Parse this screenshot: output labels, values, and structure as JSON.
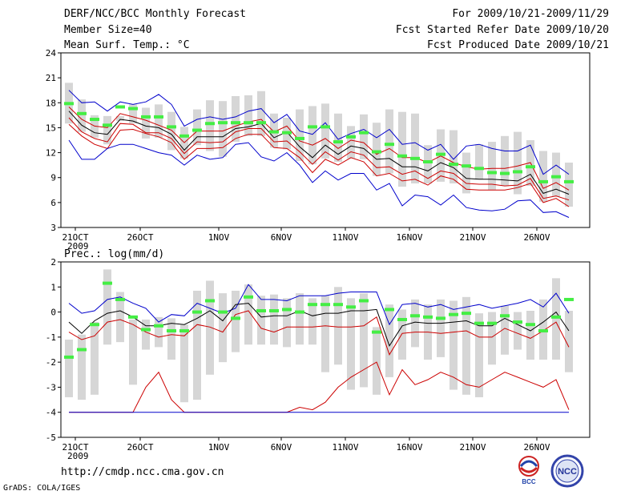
{
  "header": {
    "title": "DERF/NCC/BCC Monthly Forecast",
    "member_size": "Member Size=40",
    "variable": "Mean Surf. Temp.: °C",
    "period": "For 2009/10/21-2009/11/29",
    "start_date": "Fcst Started Refer Date 2009/10/20",
    "produced_date": "Fcst Produced Date 2009/10/21"
  },
  "footer": {
    "url": "http://cmdp.ncc.cma.gov.cn",
    "grads": "GrADS: COLA/IGES",
    "logo_bcc": "BCC",
    "logo_ncc": "NCC"
  },
  "colors": {
    "ensemble_mean": "#000000",
    "envelope": "#0000cc",
    "spread": "#cc0000",
    "box": "#d6d6d6",
    "marker": "#44ee44"
  },
  "chart_data": [
    {
      "type": "line",
      "title": "Mean Surf. Temp.: °C",
      "ylim": [
        3,
        24
      ],
      "yticks": [
        "24",
        "21",
        "18",
        "15",
        "12",
        "9",
        "6",
        "3"
      ],
      "xticks": [
        "21OCT",
        "26OCT",
        "1NOV",
        "6NOV",
        "11NOV",
        "16NOV",
        "21NOV",
        "26NOV"
      ],
      "year_label": "2009",
      "series": [
        {
          "name": "max",
          "values": [
            19.5,
            18.0,
            18.1,
            17.0,
            18.1,
            17.8,
            18.1,
            19.0,
            17.8,
            15.2,
            16.0,
            16.3,
            16.0,
            16.3,
            17.0,
            17.3,
            15.6,
            16.6,
            14.6,
            14.2,
            15.6,
            13.6,
            14.3,
            14.8,
            13.8,
            14.8,
            13.0,
            13.2,
            12.3,
            13.0,
            11.2,
            12.8,
            13.0,
            12.5,
            12.2,
            12.2,
            12.9,
            9.4,
            10.5,
            9.4
          ]
        },
        {
          "name": "p90",
          "values": [
            17.5,
            16.0,
            15.2,
            15.0,
            16.7,
            16.3,
            15.9,
            15.3,
            14.7,
            13.2,
            14.6,
            14.6,
            14.6,
            15.2,
            15.7,
            16.0,
            14.5,
            15.2,
            13.4,
            12.9,
            13.7,
            12.5,
            13.5,
            13.2,
            11.8,
            12.5,
            11.4,
            11.4,
            10.8,
            11.6,
            10.8,
            10.3,
            10.0,
            10.1,
            10.1,
            10.4,
            10.8,
            7.7,
            8.4,
            7.5
          ]
        },
        {
          "name": "mean",
          "values": [
            17.0,
            15.3,
            14.4,
            14.2,
            16.0,
            15.8,
            15.2,
            15.0,
            14.2,
            12.3,
            13.9,
            13.9,
            13.9,
            14.9,
            15.1,
            15.5,
            13.8,
            14.5,
            12.7,
            11.4,
            12.9,
            11.8,
            12.8,
            12.5,
            11.2,
            11.3,
            10.3,
            10.3,
            9.8,
            10.8,
            10.2,
            8.9,
            8.8,
            8.8,
            8.7,
            8.6,
            9.4,
            7.1,
            7.6,
            7.0
          ]
        },
        {
          "name": "p10",
          "values": [
            16.2,
            14.5,
            13.7,
            13.3,
            15.5,
            15.4,
            14.4,
            14.4,
            13.7,
            11.9,
            13.3,
            13.2,
            13.3,
            14.5,
            14.9,
            14.9,
            13.3,
            13.4,
            12.1,
            10.6,
            12.1,
            11.1,
            12.1,
            11.7,
            10.2,
            10.3,
            9.4,
            9.8,
            8.9,
            9.8,
            9.5,
            8.3,
            8.2,
            8.2,
            8.0,
            8.1,
            8.9,
            6.5,
            6.8,
            6.3
          ]
        },
        {
          "name": "p5",
          "values": [
            15.4,
            14.0,
            13.0,
            12.5,
            14.7,
            14.8,
            14.3,
            13.9,
            13.2,
            11.2,
            12.5,
            12.5,
            12.6,
            13.7,
            14.2,
            14.2,
            12.6,
            12.5,
            11.4,
            9.6,
            11.2,
            10.5,
            11.4,
            10.9,
            9.2,
            9.5,
            8.6,
            8.8,
            8.1,
            9.2,
            8.8,
            7.6,
            7.5,
            7.5,
            7.5,
            7.8,
            8.3,
            6.0,
            6.5,
            5.5
          ]
        },
        {
          "name": "min",
          "values": [
            13.5,
            11.2,
            11.2,
            12.5,
            13.0,
            13.0,
            12.5,
            12.0,
            11.7,
            10.5,
            11.7,
            11.2,
            11.4,
            13.0,
            13.2,
            11.5,
            11.0,
            12.0,
            10.5,
            8.4,
            9.8,
            8.7,
            9.5,
            9.5,
            7.5,
            8.3,
            5.6,
            6.9,
            6.7,
            5.7,
            6.9,
            5.4,
            5.1,
            5.0,
            5.2,
            6.2,
            6.3,
            4.8,
            4.9,
            4.2
          ]
        }
      ],
      "markers": [
        17.9,
        16.7,
        16.0,
        15.3,
        17.5,
        17.3,
        16.3,
        16.3,
        15.1,
        14.0,
        14.7,
        15.5,
        15.6,
        15.6,
        15.6,
        15.6,
        14.5,
        14.4,
        13.7,
        15.1,
        15.1,
        13.3,
        13.9,
        14.4,
        12.1,
        13.0,
        11.6,
        11.3,
        10.9,
        11.8,
        10.6,
        10.4,
        10.1,
        9.6,
        9.5,
        9.7,
        10.3,
        8.5,
        9.1,
        8.5
      ],
      "box_top": [
        20.4,
        18.4,
        16.5,
        16.4,
        16.4,
        17.8,
        17.4,
        17.8,
        16.9,
        15.1,
        17.2,
        18.3,
        18.2,
        18.8,
        18.9,
        19.4,
        16.7,
        16.2,
        17.2,
        17.6,
        17.9,
        16.7,
        15.2,
        16.6,
        15.6,
        17.2,
        16.9,
        16.7,
        12.9,
        14.8,
        14.7,
        12.0,
        13.0,
        13.3,
        14.0,
        14.5,
        13.5,
        12.2,
        12.0,
        10.8
      ],
      "box_bottom": [
        15.5,
        14.5,
        13.8,
        13.0,
        15.8,
        15.5,
        13.7,
        13.8,
        12.3,
        11.3,
        12.9,
        12.2,
        11.5,
        13.3,
        14.0,
        14.0,
        12.6,
        12.4,
        11.0,
        10.6,
        11.3,
        10.9,
        11.3,
        11.2,
        9.2,
        9.5,
        7.9,
        8.3,
        8.3,
        8.5,
        8.3,
        7.1,
        8.8,
        7.5,
        8.0,
        7.0,
        8.0,
        6.1,
        6.7,
        5.5
      ]
    },
    {
      "type": "line",
      "title": "Prec.: log(mm/d)",
      "ylim": [
        -5,
        2
      ],
      "yticks": [
        "2",
        "1",
        "0",
        "-1",
        "-2",
        "-3",
        "-4",
        "-5"
      ],
      "xticks": [
        "21OCT",
        "26OCT",
        "1NOV",
        "6NOV",
        "11NOV",
        "16NOV",
        "21NOV",
        "26NOV"
      ],
      "year_label": "2009",
      "series": [
        {
          "name": "max",
          "values": [
            0.35,
            -0.05,
            0.05,
            0.5,
            0.6,
            0.35,
            0.15,
            -0.4,
            -0.1,
            -0.15,
            0.35,
            0.15,
            -0.05,
            0.15,
            1.1,
            0.5,
            0.5,
            0.45,
            0.65,
            0.65,
            0.65,
            0.75,
            0.8,
            0.8,
            0.8,
            -0.5,
            0.3,
            0.35,
            0.2,
            0.3,
            0.1,
            0.2,
            0.3,
            0.15,
            0.25,
            0.35,
            0.5,
            0.2,
            0.75,
            -0.05
          ]
        },
        {
          "name": "mean",
          "values": [
            -0.4,
            -0.85,
            -0.35,
            -0.05,
            0.05,
            -0.2,
            -0.55,
            -0.55,
            -0.45,
            -0.5,
            -0.25,
            0.05,
            -0.35,
            0.3,
            0.35,
            -0.2,
            -0.15,
            -0.15,
            0.05,
            -0.15,
            -0.05,
            -0.05,
            0.05,
            0.05,
            0.1,
            -1.35,
            -0.55,
            -0.4,
            -0.45,
            -0.45,
            -0.4,
            -0.35,
            -0.55,
            -0.55,
            -0.25,
            -0.5,
            -0.75,
            -0.4,
            0.0,
            -0.75
          ]
        },
        {
          "name": "p10",
          "values": [
            -0.8,
            -1.1,
            -0.95,
            -0.4,
            -0.3,
            -0.5,
            -0.8,
            -1.0,
            -0.9,
            -0.95,
            -0.5,
            -0.6,
            -0.8,
            -0.1,
            0.05,
            -0.65,
            -0.8,
            -0.6,
            -0.6,
            -0.6,
            -0.55,
            -0.6,
            -0.6,
            -0.55,
            -0.2,
            -1.7,
            -0.85,
            -0.8,
            -0.8,
            -0.85,
            -0.8,
            -0.75,
            -1.0,
            -1.0,
            -0.65,
            -0.85,
            -1.05,
            -0.75,
            -0.4,
            -1.4
          ]
        },
        {
          "name": "p5",
          "values": [
            -4.0,
            -4.0,
            -4.0,
            -4.0,
            -4.0,
            -4.0,
            -3.0,
            -2.4,
            -3.5,
            -4.0,
            -4.0,
            -4.0,
            -4.0,
            -4.0,
            -4.0,
            -4.0,
            -4.0,
            -4.0,
            -3.8,
            -3.9,
            -3.6,
            -3.0,
            -2.6,
            -2.3,
            -2.0,
            -3.3,
            -2.3,
            -2.9,
            -2.7,
            -2.4,
            -2.6,
            -2.9,
            -3.0,
            -2.7,
            -2.4,
            -2.6,
            -2.8,
            -3.0,
            -2.7,
            -3.9
          ]
        },
        {
          "name": "min",
          "values": [
            -4.0,
            -4.0,
            -4.0,
            -4.0,
            -4.0,
            -4.0,
            -4.0,
            -4.0,
            -4.0,
            -4.0,
            -4.0,
            -4.0,
            -4.0,
            -4.0,
            -4.0,
            -4.0,
            -4.0,
            -4.0,
            -4.0,
            -4.0,
            -4.0,
            -4.0,
            -4.0,
            -4.0,
            -4.0,
            -4.0,
            -4.0,
            -4.0,
            -4.0,
            -4.0,
            -4.0,
            -4.0,
            -4.0,
            -4.0,
            -4.0,
            -4.0,
            -4.0,
            -4.0,
            -4.0,
            -4.0
          ]
        }
      ],
      "markers": [
        -1.8,
        -1.5,
        -0.5,
        1.15,
        0.5,
        -0.2,
        -0.7,
        -0.55,
        -0.75,
        -0.75,
        0.0,
        0.45,
        0.0,
        -0.25,
        0.6,
        0.05,
        0.05,
        0.1,
        0.0,
        0.3,
        0.3,
        0.3,
        0.2,
        0.45,
        -0.8,
        0.1,
        -0.3,
        -0.15,
        -0.2,
        -0.25,
        -0.1,
        -0.05,
        -0.45,
        -0.45,
        -0.15,
        -0.4,
        -0.5,
        -0.75,
        -0.2,
        0.5
      ],
      "box_top": [
        -1.1,
        -0.9,
        -0.4,
        1.7,
        0.8,
        -0.3,
        -0.3,
        -0.2,
        -0.25,
        -0.5,
        0.85,
        1.25,
        0.75,
        0.85,
        1.1,
        0.65,
        0.7,
        0.55,
        0.75,
        0.55,
        0.65,
        1.0,
        0.55,
        0.75,
        -0.6,
        0.3,
        0.1,
        0.5,
        0.3,
        0.5,
        0.45,
        0.6,
        -0.05,
        0.0,
        0.25,
        0.0,
        0.05,
        0.5,
        1.35,
        0.05
      ],
      "box_bottom": [
        -3.4,
        -3.5,
        -3.3,
        -1.3,
        -1.2,
        -2.9,
        -1.5,
        -1.4,
        -1.9,
        -3.6,
        -3.5,
        -2.5,
        -2.0,
        -1.6,
        -1.3,
        -1.3,
        -1.3,
        -1.4,
        -1.3,
        -1.3,
        -2.4,
        -2.1,
        -3.1,
        -3.0,
        -3.3,
        -2.6,
        -1.9,
        -1.4,
        -1.9,
        -1.8,
        -3.1,
        -3.3,
        -3.4,
        -2.1,
        -1.7,
        -1.5,
        -1.9,
        -1.9,
        -1.9,
        -2.4
      ]
    }
  ]
}
